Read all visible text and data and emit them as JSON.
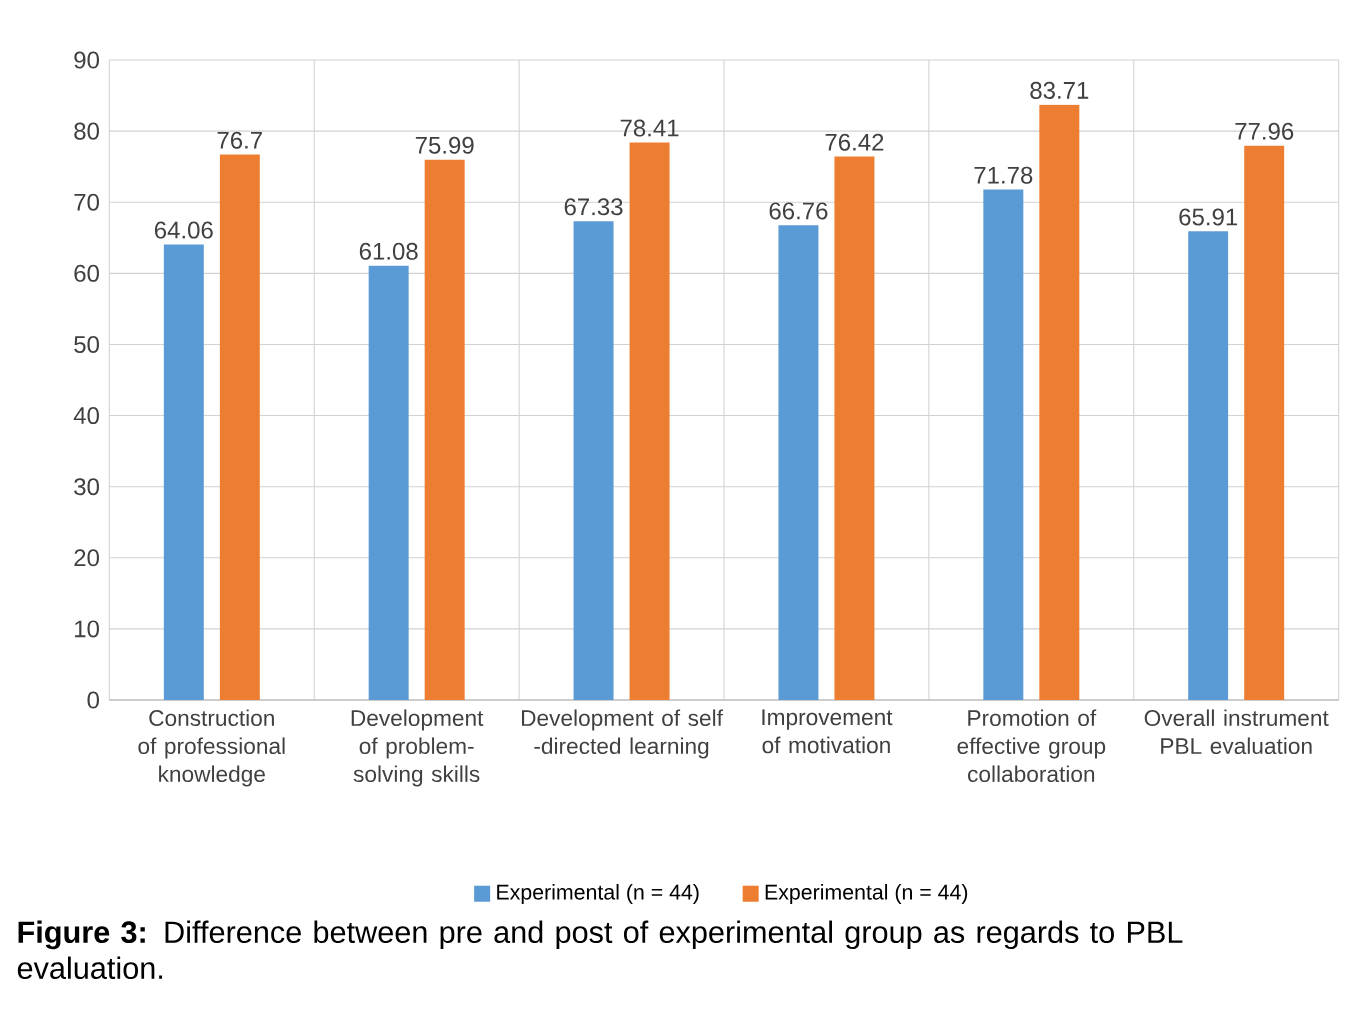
{
  "chart_data": {
    "type": "bar",
    "categories": [
      "Construction of professional knowledge",
      "Development of problem-solving skills",
      "Development of self -directed learning",
      "Improvement of motivation",
      "Promotion of effective group collaboration",
      "Overall instrument PBL evaluation"
    ],
    "series": [
      {
        "name": "Experimental (n = 44)",
        "color": "#5b9bd5",
        "values": [
          64.06,
          61.08,
          67.33,
          66.76,
          71.78,
          65.91
        ]
      },
      {
        "name": "Experimental (n = 44)",
        "color": "#ed7d31",
        "values": [
          76.7,
          75.99,
          78.41,
          76.42,
          83.71,
          77.96
        ]
      }
    ],
    "ylim": [
      0,
      90
    ],
    "yticks": [
      0,
      10,
      20,
      30,
      40,
      50,
      60,
      70,
      80,
      90
    ],
    "grid": true,
    "legend": "bottom",
    "data_labels": true,
    "annotations": [
      "**Figure 3:** Difference between pre and post of experimental group as regards to PBL evaluation."
    ]
  }
}
